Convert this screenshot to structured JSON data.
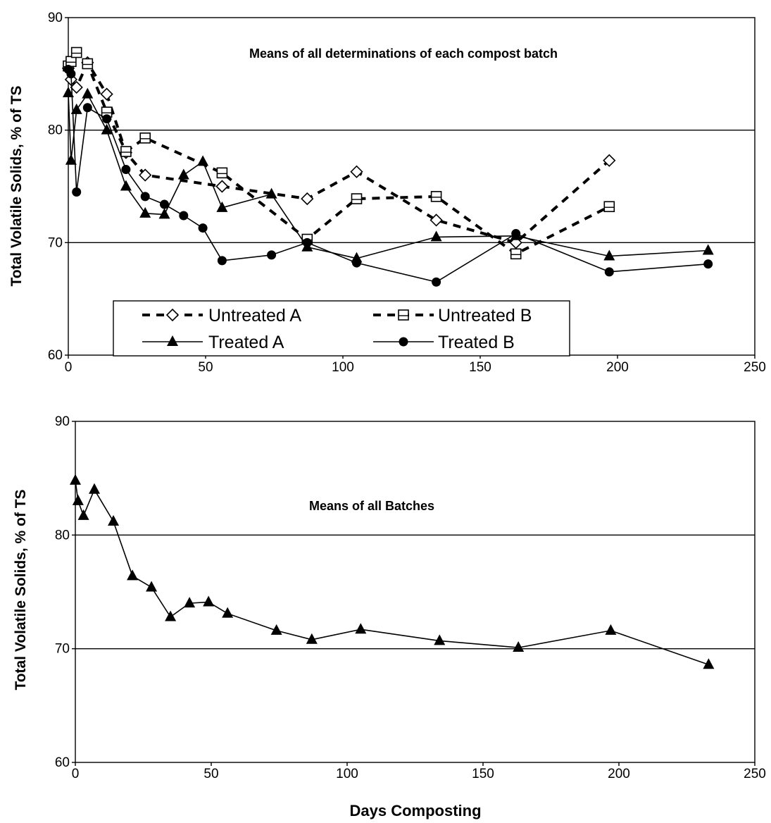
{
  "chart_data": [
    {
      "type": "line",
      "title": "Means of all determinations of each compost batch",
      "xlabel": "",
      "ylabel": "Total Volatile Solids, % of TS",
      "xlim": [
        0,
        250
      ],
      "ylim": [
        60,
        90
      ],
      "xticks": [
        "0",
        "50",
        "100",
        "150",
        "200",
        "250"
      ],
      "yticks": [
        "60",
        "70",
        "80",
        "90"
      ],
      "grid": "horizontal",
      "legend_position": "bottom-left",
      "series": [
        {
          "name": "Untreated A",
          "style": "dashed",
          "marker": "diamond",
          "color": "#000000",
          "points": [
            [
              0,
              85.5
            ],
            [
              1,
              84.5
            ],
            [
              3,
              83.8
            ],
            [
              7,
              86.0
            ],
            [
              14,
              83.2
            ],
            [
              21,
              78.0
            ],
            [
              28,
              76.0
            ],
            [
              56,
              75.0
            ],
            [
              87,
              73.9
            ],
            [
              105,
              76.3
            ],
            [
              134,
              72.0
            ],
            [
              163,
              70.0
            ],
            [
              197,
              77.3
            ]
          ]
        },
        {
          "name": "Untreated B",
          "style": "dashed",
          "marker": "square",
          "color": "#000000",
          "points": [
            [
              0,
              85.7
            ],
            [
              1,
              86.1
            ],
            [
              3,
              86.9
            ],
            [
              7,
              85.9
            ],
            [
              14,
              81.6
            ],
            [
              21,
              78.1
            ],
            [
              28,
              79.3
            ],
            [
              56,
              76.2
            ],
            [
              87,
              70.3
            ],
            [
              105,
              73.9
            ],
            [
              134,
              74.1
            ],
            [
              163,
              69.0
            ],
            [
              197,
              73.2
            ]
          ]
        },
        {
          "name": "Treated A",
          "style": "solid",
          "marker": "triangle",
          "color": "#000000",
          "points": [
            [
              0,
              83.3
            ],
            [
              1,
              77.3
            ],
            [
              3,
              81.8
            ],
            [
              7,
              83.2
            ],
            [
              14,
              80.0
            ],
            [
              21,
              75.0
            ],
            [
              28,
              72.6
            ],
            [
              35,
              72.5
            ],
            [
              42,
              76.0
            ],
            [
              49,
              77.2
            ],
            [
              56,
              73.1
            ],
            [
              74,
              74.3
            ],
            [
              87,
              69.6
            ],
            [
              105,
              68.6
            ],
            [
              134,
              70.5
            ],
            [
              163,
              70.6
            ],
            [
              197,
              68.8
            ],
            [
              233,
              69.3
            ]
          ]
        },
        {
          "name": "Treated B",
          "style": "solid",
          "marker": "circle",
          "color": "#000000",
          "points": [
            [
              0,
              85.4
            ],
            [
              1,
              85.0
            ],
            [
              3,
              74.5
            ],
            [
              7,
              82.0
            ],
            [
              14,
              81.0
            ],
            [
              21,
              76.5
            ],
            [
              28,
              74.1
            ],
            [
              35,
              73.4
            ],
            [
              42,
              72.4
            ],
            [
              49,
              71.3
            ],
            [
              56,
              68.4
            ],
            [
              74,
              68.9
            ],
            [
              87,
              70.0
            ],
            [
              105,
              68.2
            ],
            [
              134,
              66.5
            ],
            [
              163,
              70.8
            ],
            [
              197,
              67.4
            ],
            [
              233,
              68.1
            ]
          ]
        }
      ]
    },
    {
      "type": "line",
      "title": "Means of all Batches",
      "xlabel": "Days Composting",
      "ylabel": "Total Volatile Solids, % of TS",
      "xlim": [
        0,
        250
      ],
      "ylim": [
        60,
        90
      ],
      "xticks": [
        "0",
        "50",
        "100",
        "150",
        "200",
        "250"
      ],
      "yticks": [
        "60",
        "70",
        "80",
        "90"
      ],
      "grid": "horizontal",
      "legend_position": "none",
      "series": [
        {
          "name": "",
          "style": "solid",
          "marker": "triangle",
          "color": "#000000",
          "points": [
            [
              0,
              84.8
            ],
            [
              1,
              83.0
            ],
            [
              3,
              81.7
            ],
            [
              7,
              84.0
            ],
            [
              14,
              81.2
            ],
            [
              21,
              76.4
            ],
            [
              28,
              75.4
            ],
            [
              35,
              72.8
            ],
            [
              42,
              74.0
            ],
            [
              49,
              74.1
            ],
            [
              56,
              73.1
            ],
            [
              74,
              71.6
            ],
            [
              87,
              70.8
            ],
            [
              105,
              71.7
            ],
            [
              134,
              70.7
            ],
            [
              163,
              70.1
            ],
            [
              197,
              71.6
            ],
            [
              233,
              68.6
            ]
          ]
        }
      ]
    }
  ]
}
